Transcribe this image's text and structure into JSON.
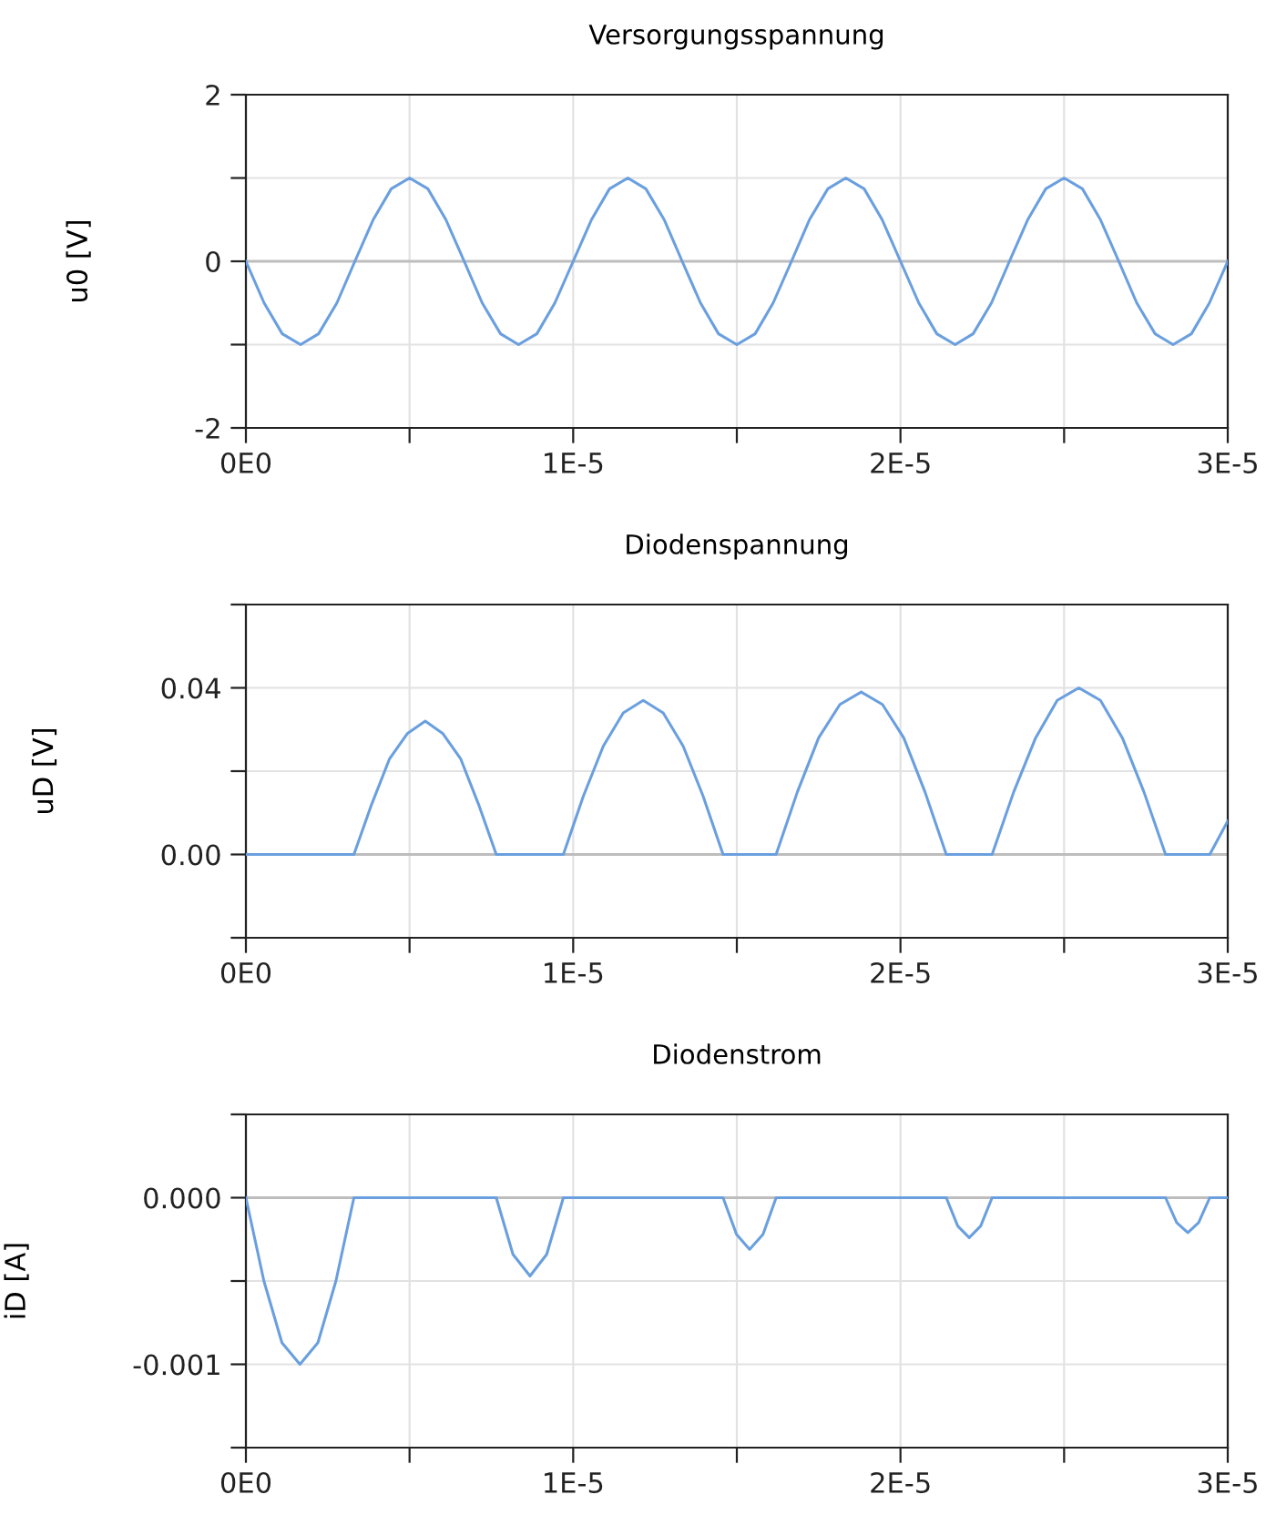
{
  "chart_data": [
    {
      "type": "line",
      "title": "Versorgungsspannung",
      "ylabel": "u0 [V]",
      "grid": true,
      "marker": "none",
      "line_style": "solid",
      "xlim": [
        0,
        3e-05
      ],
      "ylim": [
        -2,
        2
      ],
      "xticks": [
        {
          "value": 0,
          "label": "0E0"
        },
        {
          "value": 5e-06,
          "label": null
        },
        {
          "value": 1e-05,
          "label": "1E-5"
        },
        {
          "value": 1.5e-05,
          "label": null
        },
        {
          "value": 2e-05,
          "label": "2E-5"
        },
        {
          "value": 2.5e-05,
          "label": null
        },
        {
          "value": 3e-05,
          "label": "3E-5"
        }
      ],
      "yticks": [
        -2,
        {
          "value": -1,
          "label": null
        },
        0,
        {
          "value": 1,
          "label": null
        },
        2
      ],
      "ref_lines": [
        {
          "axis": "y",
          "value": 0,
          "color": "#bdbdbd"
        }
      ],
      "series": [
        {
          "color": "#6a9fdf",
          "x": [
            0,
            5.56e-07,
            1.11e-06,
            1.67e-06,
            2.22e-06,
            2.78e-06,
            3.33e-06,
            3.89e-06,
            4.44e-06,
            5e-06,
            5.56e-06,
            6.11e-06,
            6.67e-06,
            7.22e-06,
            7.78e-06,
            8.33e-06,
            8.89e-06,
            9.44e-06,
            1e-05,
            1.056e-05,
            1.111e-05,
            1.167e-05,
            1.222e-05,
            1.278e-05,
            1.333e-05,
            1.389e-05,
            1.444e-05,
            1.5e-05,
            1.556e-05,
            1.611e-05,
            1.667e-05,
            1.722e-05,
            1.778e-05,
            1.833e-05,
            1.889e-05,
            1.944e-05,
            2e-05,
            2.056e-05,
            2.111e-05,
            2.167e-05,
            2.222e-05,
            2.278e-05,
            2.333e-05,
            2.389e-05,
            2.444e-05,
            2.5e-05,
            2.556e-05,
            2.611e-05,
            2.667e-05,
            2.722e-05,
            2.778e-05,
            2.833e-05,
            2.889e-05,
            2.944e-05,
            3e-05
          ],
          "values": [
            0,
            -0.5,
            -0.87,
            -1,
            -0.87,
            -0.5,
            0,
            0.5,
            0.87,
            1,
            0.87,
            0.5,
            0,
            -0.5,
            -0.87,
            -1,
            -0.87,
            -0.5,
            0,
            0.5,
            0.87,
            1,
            0.87,
            0.5,
            0,
            -0.5,
            -0.87,
            -1,
            -0.87,
            -0.5,
            0,
            0.5,
            0.87,
            1,
            0.87,
            0.5,
            0,
            -0.5,
            -0.87,
            -1,
            -0.87,
            -0.5,
            0,
            0.5,
            0.87,
            1,
            0.87,
            0.5,
            0,
            -0.5,
            -0.87,
            -1,
            -0.87,
            -0.5,
            0
          ]
        }
      ]
    },
    {
      "type": "line",
      "title": "Diodenspannung",
      "ylabel": "uD [V]",
      "grid": true,
      "marker": "none",
      "line_style": "solid",
      "xlim": [
        0,
        3e-05
      ],
      "ylim": [
        -0.02,
        0.06
      ],
      "xticks": [
        {
          "value": 0,
          "label": "0E0"
        },
        {
          "value": 5e-06,
          "label": null
        },
        {
          "value": 1e-05,
          "label": "1E-5"
        },
        {
          "value": 1.5e-05,
          "label": null
        },
        {
          "value": 2e-05,
          "label": "2E-5"
        },
        {
          "value": 2.5e-05,
          "label": null
        },
        {
          "value": 3e-05,
          "label": "3E-5"
        }
      ],
      "yticks": [
        {
          "value": -0.02,
          "label": null
        },
        {
          "value": 0,
          "label": "0.00"
        },
        {
          "value": 0.02,
          "label": null
        },
        {
          "value": 0.04,
          "label": "0.04"
        },
        {
          "value": 0.06,
          "label": null
        }
      ],
      "ref_lines": [
        {
          "axis": "y",
          "value": 0,
          "color": "#bdbdbd"
        }
      ],
      "series": [
        {
          "color": "#6a9fdf",
          "x": [
            0,
            3.3e-06,
            3.84e-06,
            4.39e-06,
            4.93e-06,
            5.48e-06,
            6.02e-06,
            6.56e-06,
            7.11e-06,
            7.65e-06,
            9.7e-06,
            1.031e-05,
            1.092e-05,
            1.153e-05,
            1.214e-05,
            1.275e-05,
            1.336e-05,
            1.397e-05,
            1.458e-05,
            1.62e-05,
            1.685e-05,
            1.75e-05,
            1.815e-05,
            1.88e-05,
            1.945e-05,
            2.01e-05,
            2.075e-05,
            2.14e-05,
            2.28e-05,
            2.346e-05,
            2.413e-05,
            2.479e-05,
            2.545e-05,
            2.611e-05,
            2.678e-05,
            2.744e-05,
            2.81e-05,
            2.945e-05,
            3e-05
          ],
          "values": [
            0,
            0,
            0.012,
            0.023,
            0.029,
            0.032,
            0.029,
            0.023,
            0.012,
            0,
            0,
            0.014,
            0.026,
            0.034,
            0.037,
            0.034,
            0.026,
            0.014,
            0,
            0,
            0.015,
            0.028,
            0.036,
            0.039,
            0.036,
            0.028,
            0.015,
            0,
            0,
            0.015,
            0.028,
            0.037,
            0.04,
            0.037,
            0.028,
            0.015,
            0,
            0,
            0.008
          ]
        }
      ]
    },
    {
      "type": "line",
      "title": "Diodenstrom",
      "ylabel": "iD [A]",
      "grid": true,
      "marker": "none",
      "line_style": "solid",
      "xlim": [
        0,
        3e-05
      ],
      "ylim": [
        -0.0015,
        0.0005
      ],
      "xticks": [
        {
          "value": 0,
          "label": "0E0"
        },
        {
          "value": 5e-06,
          "label": null
        },
        {
          "value": 1e-05,
          "label": "1E-5"
        },
        {
          "value": 1.5e-05,
          "label": null
        },
        {
          "value": 2e-05,
          "label": "2E-5"
        },
        {
          "value": 2.5e-05,
          "label": null
        },
        {
          "value": 3e-05,
          "label": "3E-5"
        }
      ],
      "yticks": [
        {
          "value": -0.0015,
          "label": null
        },
        {
          "value": -0.001,
          "label": "-0.001"
        },
        {
          "value": -0.0005,
          "label": null
        },
        {
          "value": 0,
          "label": "0.000"
        },
        {
          "value": 0.0005,
          "label": null
        }
      ],
      "ref_lines": [
        {
          "axis": "y",
          "value": 0,
          "color": "#bdbdbd"
        }
      ],
      "series": [
        {
          "color": "#6a9fdf",
          "x": [
            0,
            5.5e-07,
            1.1e-06,
            1.65e-06,
            2.2e-06,
            2.75e-06,
            3.3e-06,
            7.65e-06,
            8.16e-06,
            8.68e-06,
            9.19e-06,
            9.7e-06,
            1.458e-05,
            1.499e-05,
            1.539e-05,
            1.58e-05,
            1.62e-05,
            2.14e-05,
            2.175e-05,
            2.21e-05,
            2.245e-05,
            2.28e-05,
            2.81e-05,
            2.844e-05,
            2.878e-05,
            2.911e-05,
            2.945e-05,
            3e-05
          ],
          "values": [
            0,
            -0.0005,
            -0.00087,
            -0.001,
            -0.00087,
            -0.0005,
            0,
            0,
            -0.00034,
            -0.00047,
            -0.00034,
            0,
            0,
            -0.00022,
            -0.00031,
            -0.00022,
            0,
            0,
            -0.00017,
            -0.00024,
            -0.00017,
            0,
            0,
            -0.00015,
            -0.00021,
            -0.00015,
            0,
            0
          ]
        }
      ]
    }
  ]
}
